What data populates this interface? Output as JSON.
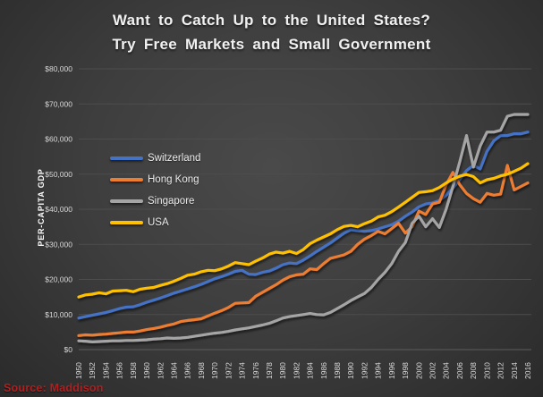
{
  "title": {
    "line1": "Want to Catch Up to the United States?",
    "line2": "Try Free Markets and Small Government"
  },
  "source": "Source: Maddison",
  "colors": {
    "background_center": "#4a4a4a",
    "background_edge": "#2a2a2a",
    "gridline": "#4d4d4d",
    "axis_line": "#5c5c5c",
    "tick_text": "#d9d9d9",
    "title_text": "#f1f1f1",
    "source_text": "#b02020"
  },
  "chart_data": {
    "type": "line",
    "title": "Want to Catch Up to the United States? Try Free Markets and Small Government",
    "xlabel": "",
    "ylabel": "PER-CAPITA GDP",
    "ylim": [
      0,
      80000
    ],
    "grid": "horizontal",
    "legend_position": "inside-left",
    "y_ticks": [
      {
        "value": 0,
        "label": "$0"
      },
      {
        "value": 10000,
        "label": "$10,000"
      },
      {
        "value": 20000,
        "label": "$20,000"
      },
      {
        "value": 30000,
        "label": "$30,000"
      },
      {
        "value": 40000,
        "label": "$40,000"
      },
      {
        "value": 50000,
        "label": "$50,000"
      },
      {
        "value": 60000,
        "label": "$60,000"
      },
      {
        "value": 70000,
        "label": "$70,000"
      },
      {
        "value": 80000,
        "label": "$80,000"
      }
    ],
    "x_tick_years": [
      1950,
      1952,
      1954,
      1956,
      1958,
      1960,
      1962,
      1964,
      1966,
      1968,
      1970,
      1972,
      1974,
      1976,
      1978,
      1980,
      1982,
      1984,
      1986,
      1988,
      1990,
      1992,
      1994,
      1996,
      1998,
      2000,
      2002,
      2004,
      2006,
      2008,
      2010,
      2012,
      2014,
      2016
    ],
    "x": [
      1950,
      1951,
      1952,
      1953,
      1954,
      1955,
      1956,
      1957,
      1958,
      1959,
      1960,
      1961,
      1962,
      1963,
      1964,
      1965,
      1966,
      1967,
      1968,
      1969,
      1970,
      1971,
      1972,
      1973,
      1974,
      1975,
      1976,
      1977,
      1978,
      1979,
      1980,
      1981,
      1982,
      1983,
      1984,
      1985,
      1986,
      1987,
      1988,
      1989,
      1990,
      1991,
      1992,
      1993,
      1994,
      1995,
      1996,
      1997,
      1998,
      1999,
      2000,
      2001,
      2002,
      2003,
      2004,
      2005,
      2006,
      2007,
      2008,
      2009,
      2010,
      2011,
      2012,
      2013,
      2014,
      2015,
      2016
    ],
    "series": [
      {
        "name": "Switzerland",
        "color": "#4472C4",
        "values": [
          9000,
          9400,
          9800,
          10200,
          10600,
          11100,
          11700,
          12100,
          12200,
          12800,
          13500,
          14100,
          14700,
          15400,
          16100,
          16700,
          17300,
          17900,
          18600,
          19400,
          20200,
          20800,
          21500,
          22300,
          22600,
          21500,
          21400,
          22000,
          22400,
          23200,
          24200,
          24700,
          24500,
          25500,
          26700,
          28000,
          29200,
          30400,
          31800,
          33200,
          34200,
          33900,
          33700,
          33900,
          34400,
          35000,
          35600,
          36600,
          38000,
          39200,
          40700,
          41500,
          41800,
          42500,
          44000,
          46000,
          48500,
          51000,
          52500,
          51500,
          56500,
          59500,
          61000,
          61000,
          61500,
          61500,
          62000
        ]
      },
      {
        "name": "Hong Kong",
        "color": "#ED7D31",
        "values": [
          4000,
          4200,
          4100,
          4300,
          4400,
          4600,
          4800,
          5000,
          5000,
          5300,
          5700,
          6000,
          6400,
          6900,
          7300,
          8000,
          8300,
          8500,
          8800,
          9600,
          10400,
          11100,
          12000,
          13200,
          13300,
          13400,
          15200,
          16300,
          17400,
          18500,
          19800,
          20800,
          21300,
          21500,
          23000,
          22800,
          24500,
          26000,
          26500,
          27000,
          28000,
          30000,
          31500,
          32500,
          33700,
          33000,
          34500,
          36000,
          33200,
          35000,
          39500,
          38500,
          41500,
          42000,
          47000,
          50500,
          47000,
          44500,
          43000,
          42000,
          44500,
          44000,
          44300,
          52500,
          45500,
          46500,
          47500
        ]
      },
      {
        "name": "Singapore",
        "color": "#A5A5A5",
        "values": [
          2500,
          2400,
          2200,
          2300,
          2400,
          2500,
          2500,
          2600,
          2600,
          2700,
          2800,
          3000,
          3100,
          3300,
          3200,
          3300,
          3500,
          3800,
          4100,
          4400,
          4700,
          4900,
          5200,
          5600,
          5900,
          6200,
          6600,
          7000,
          7500,
          8200,
          9000,
          9400,
          9700,
          10000,
          10300,
          10000,
          9900,
          10600,
          11700,
          12800,
          14000,
          15000,
          16000,
          17700,
          20000,
          22000,
          24500,
          28000,
          30500,
          36000,
          38000,
          35000,
          37300,
          34800,
          40000,
          46500,
          53500,
          61000,
          52000,
          58000,
          62000,
          62000,
          62500,
          66500,
          67000,
          67000,
          67000
        ]
      },
      {
        "name": "USA",
        "color": "#FFC000",
        "values": [
          15000,
          15600,
          15800,
          16200,
          15900,
          16700,
          16800,
          16900,
          16500,
          17200,
          17500,
          17700,
          18300,
          18800,
          19500,
          20300,
          21200,
          21500,
          22200,
          22600,
          22500,
          23000,
          23800,
          24800,
          24500,
          24200,
          25200,
          26100,
          27200,
          27800,
          27500,
          28000,
          27400,
          28500,
          30200,
          31200,
          32100,
          33000,
          34200,
          35100,
          35400,
          35000,
          35900,
          36600,
          37800,
          38300,
          39300,
          40600,
          42000,
          43400,
          44800,
          45000,
          45300,
          46200,
          47500,
          48600,
          49400,
          49900,
          49300,
          47500,
          48400,
          48800,
          49500,
          50000,
          50800,
          51700,
          53000
        ]
      }
    ]
  }
}
